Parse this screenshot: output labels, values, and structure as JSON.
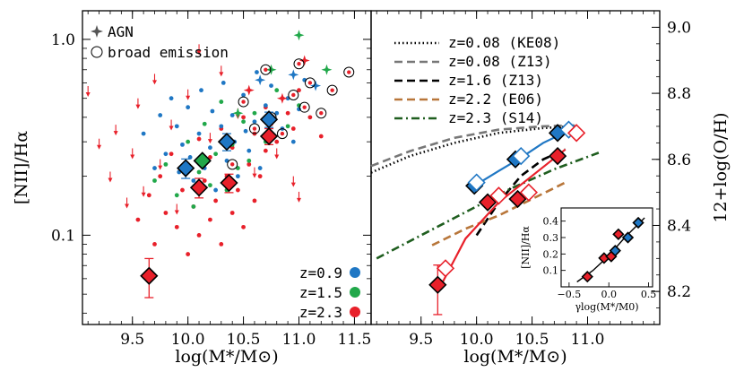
{
  "chart_data": [
    {
      "panel": "left",
      "type": "scatter",
      "xlabel": "log(M*/M⊙)",
      "ylabel": "[NII]/Hα",
      "xlim": [
        9.05,
        11.65
      ],
      "ylim": [
        0.035,
        1.4
      ],
      "yscale": "log",
      "xticks": [
        9.5,
        10.0,
        10.5,
        11.0,
        11.5
      ],
      "xtick_labels": [
        "9.5",
        "10.0",
        "10.5",
        "11.0",
        "11.5"
      ],
      "yticks": [
        0.1,
        1.0
      ],
      "ytick_labels": [
        "0.1",
        "1.0"
      ],
      "legend_top": [
        {
          "label": "AGN",
          "marker": "star"
        },
        {
          "label": "broad emission",
          "marker": "open-circle"
        }
      ],
      "legend_bottom": [
        {
          "label": "z=0.9",
          "color": "#1f77c4"
        },
        {
          "label": "z=1.5",
          "color": "#21a84a"
        },
        {
          "label": "z=2.3",
          "color": "#e8202a"
        }
      ],
      "series": [
        {
          "name": "z=0.9",
          "color": "#1f77c4",
          "x": [
            9.6,
            9.7,
            9.75,
            9.8,
            9.85,
            9.9,
            9.92,
            9.95,
            10.0,
            10.02,
            10.05,
            10.1,
            10.12,
            10.15,
            10.2,
            10.22,
            10.25,
            10.3,
            10.32,
            10.35,
            10.4,
            10.42,
            10.45,
            10.5,
            10.52,
            10.55,
            10.6,
            10.62,
            10.65,
            10.7,
            10.72,
            10.75,
            10.8,
            10.85,
            10.9,
            10.95,
            11.0,
            11.05
          ],
          "y": [
            0.33,
            0.22,
            0.41,
            0.26,
            0.5,
            0.36,
            0.21,
            0.29,
            0.45,
            0.25,
            0.19,
            0.33,
            0.55,
            0.22,
            0.28,
            0.43,
            0.17,
            0.36,
            0.6,
            0.24,
            0.41,
            0.3,
            0.2,
            0.52,
            0.34,
            0.27,
            0.38,
            0.68,
            0.22,
            0.46,
            0.31,
            0.58,
            0.42,
            0.35,
            0.5,
            0.3,
            0.44,
            0.62
          ]
        },
        {
          "name": "z=1.5",
          "color": "#21a84a",
          "x": [
            9.7,
            9.8,
            9.9,
            10.0,
            10.05,
            10.1,
            10.15,
            10.2,
            10.25,
            10.3,
            10.35,
            10.4,
            10.45,
            10.5,
            10.55,
            10.6,
            10.7,
            10.8,
            10.9,
            11.0
          ],
          "y": [
            0.19,
            0.23,
            0.16,
            0.3,
            0.14,
            0.21,
            0.37,
            0.18,
            0.26,
            0.48,
            0.17,
            0.29,
            0.22,
            0.38,
            0.24,
            0.42,
            0.3,
            0.55,
            0.36,
            0.46
          ]
        },
        {
          "name": "z=2.3",
          "color": "#e8202a",
          "x": [
            9.55,
            9.65,
            9.7,
            9.75,
            9.8,
            9.85,
            9.9,
            9.95,
            10.0,
            10.0,
            10.05,
            10.1,
            10.1,
            10.15,
            10.2,
            10.2,
            10.25,
            10.3,
            10.3,
            10.35,
            10.4,
            10.4,
            10.45,
            10.5,
            10.5,
            10.55,
            10.6,
            10.6,
            10.65,
            10.7,
            10.7,
            10.75,
            10.8,
            10.85,
            10.9,
            10.95,
            11.0,
            11.1,
            11.2
          ],
          "y": [
            0.12,
            0.16,
            0.09,
            0.2,
            0.13,
            0.26,
            0.11,
            0.17,
            0.08,
            0.22,
            0.14,
            0.1,
            0.31,
            0.19,
            0.12,
            0.25,
            0.15,
            0.09,
            0.35,
            0.2,
            0.13,
            0.28,
            0.17,
            0.11,
            0.4,
            0.23,
            0.15,
            0.33,
            0.2,
            0.27,
            0.45,
            0.37,
            0.3,
            0.5,
            0.42,
            0.35,
            0.55,
            0.4,
            0.32
          ]
        },
        {
          "name": "upper-limits",
          "x": [
            9.1,
            9.2,
            9.3,
            9.35,
            9.45,
            9.5,
            9.55,
            9.6,
            9.7,
            9.75,
            9.85,
            9.9,
            10.0,
            10.1,
            10.2,
            10.3,
            10.45,
            10.6,
            10.8,
            10.95,
            11.0
          ],
          "y": [
            0.52,
            0.28,
            0.19,
            0.33,
            0.14,
            0.25,
            0.45,
            0.16,
            0.6,
            0.22,
            0.35,
            0.13,
            0.5,
            0.85,
            0.3,
            0.66,
            0.4,
            0.2,
            0.25,
            0.18,
            0.15
          ]
        },
        {
          "name": "AGN",
          "x": [
            10.45,
            10.55,
            10.65,
            10.75,
            10.85,
            10.95,
            11.0,
            11.05,
            11.15,
            11.25
          ],
          "y": [
            0.42,
            0.55,
            0.62,
            0.7,
            0.5,
            0.66,
            1.05,
            0.78,
            0.58,
            0.7
          ]
        },
        {
          "name": "broad emission",
          "x": [
            10.4,
            10.5,
            10.6,
            10.7,
            10.75,
            10.85,
            10.95,
            11.0,
            11.05,
            11.1,
            11.2,
            11.3,
            11.45
          ],
          "y": [
            0.23,
            0.48,
            0.35,
            0.7,
            0.4,
            0.33,
            0.52,
            0.75,
            0.45,
            0.6,
            0.42,
            0.55,
            0.68
          ]
        },
        {
          "name": "stack z=0.9",
          "color": "#1f77c4",
          "x": [
            9.98,
            10.35,
            10.73
          ],
          "y": [
            0.22,
            0.3,
            0.39
          ],
          "yerr": [
            0.025,
            0.03,
            0.035
          ]
        },
        {
          "name": "stack z=1.5",
          "color": "#21a84a",
          "x": [
            10.13
          ],
          "y": [
            0.24
          ]
        },
        {
          "name": "stack z=2.3",
          "color": "#e8202a",
          "x": [
            9.65,
            10.1,
            10.37,
            10.73
          ],
          "y": [
            0.062,
            0.175,
            0.185,
            0.32
          ],
          "yerr": [
            0.014,
            0.02,
            0.02,
            0.03
          ]
        }
      ]
    },
    {
      "panel": "right",
      "type": "line",
      "xlabel": "log(M*/M⊙)",
      "ylabel": "12+log(O/H)",
      "xlim": [
        9.05,
        11.65
      ],
      "ylim": [
        8.1,
        9.05
      ],
      "xticks": [
        9.5,
        10.0,
        10.5,
        11.0
      ],
      "xtick_labels": [
        "9.5",
        "10.0",
        "10.5",
        "11.0"
      ],
      "yticks": [
        8.2,
        8.4,
        8.6,
        8.8,
        9.0
      ],
      "ytick_labels": [
        "8.2",
        "8.4",
        "8.6",
        "8.8",
        "9.0"
      ],
      "legend": [
        {
          "label": "z=0.08 (KE08)",
          "color": "#000000",
          "dash": "dotted"
        },
        {
          "label": "z=0.08 (Z13)",
          "color": "#777777",
          "dash": "dashed"
        },
        {
          "label": "z=1.6 (Z13)",
          "color": "#000000",
          "dash": "dashed"
        },
        {
          "label": "z=2.2 (E06)",
          "color": "#b8763a",
          "dash": "dashed"
        },
        {
          "label": "z=2.3 (S14)",
          "color": "#1f5e1f",
          "dash": "dashdot"
        }
      ],
      "lines": [
        {
          "name": "z=0.08 (KE08)",
          "x": [
            9.05,
            9.4,
            9.8,
            10.2,
            10.6,
            10.9
          ],
          "y": [
            8.56,
            8.61,
            8.65,
            8.68,
            8.695,
            8.7
          ]
        },
        {
          "name": "z=0.08 (Z13)",
          "x": [
            9.05,
            9.4,
            9.8,
            10.2,
            10.6,
            10.9
          ],
          "y": [
            8.58,
            8.625,
            8.665,
            8.69,
            8.7,
            8.703
          ]
        },
        {
          "name": "z=1.6 (Z13)",
          "x": [
            10.0,
            10.2,
            10.4,
            10.6,
            10.8
          ],
          "y": [
            8.37,
            8.47,
            8.55,
            8.6,
            8.63
          ]
        },
        {
          "name": "z=2.2 (E06)",
          "x": [
            9.6,
            9.9,
            10.2,
            10.5,
            10.8
          ],
          "y": [
            8.34,
            8.39,
            8.43,
            8.48,
            8.53
          ]
        },
        {
          "name": "z=2.3 (S14)",
          "x": [
            9.1,
            9.5,
            9.9,
            10.3,
            10.7,
            11.1
          ],
          "y": [
            8.3,
            8.37,
            8.44,
            8.51,
            8.57,
            8.62
          ]
        }
      ],
      "points": [
        {
          "name": "z=0.9 filled",
          "color": "#1f77c4",
          "x": [
            9.98,
            10.35,
            10.73
          ],
          "y": [
            8.52,
            8.6,
            8.68
          ]
        },
        {
          "name": "z=0.9 open",
          "color": "#1f77c4",
          "x": [
            10.0,
            10.4,
            10.83
          ],
          "y": [
            8.53,
            8.61,
            8.69
          ]
        },
        {
          "name": "z=2.3 filled",
          "color": "#e8202a",
          "x": [
            9.65,
            10.1,
            10.37,
            10.73
          ],
          "y": [
            8.22,
            8.47,
            8.48,
            8.61
          ]
        },
        {
          "name": "z=2.3 open",
          "color": "#e8202a",
          "x": [
            9.72,
            10.2,
            10.47,
            10.9
          ],
          "y": [
            8.27,
            8.49,
            8.5,
            8.68
          ]
        }
      ],
      "fits": [
        {
          "color": "#1f77c4",
          "x": [
            9.98,
            10.2,
            10.4,
            10.6,
            10.85
          ],
          "y": [
            8.52,
            8.565,
            8.605,
            8.65,
            8.69
          ]
        },
        {
          "color": "#e8202a",
          "x": [
            9.65,
            9.9,
            10.2,
            10.5,
            10.8
          ],
          "y": [
            8.2,
            8.36,
            8.47,
            8.55,
            8.63
          ]
        }
      ],
      "inset": {
        "xlabel": "γlog(M*/M0)",
        "ylabel": "[NII]/Hα",
        "xlim": [
          -0.6,
          0.55
        ],
        "ylim": [
          0.0,
          0.48
        ],
        "xticks": [
          -0.5,
          0.0,
          0.5
        ],
        "xtick_labels": [
          "−0.5",
          "0.0",
          "0.5"
        ],
        "yticks": [
          0.1,
          0.2,
          0.3,
          0.4
        ],
        "ytick_labels": [
          "0.1",
          "0.2",
          "0.3",
          "0.4"
        ],
        "red_points": {
          "x": [
            -0.27,
            -0.06,
            0.03,
            0.12
          ],
          "y": [
            0.062,
            0.175,
            0.185,
            0.32
          ]
        },
        "blue_points": {
          "x": [
            0.08,
            0.24,
            0.37
          ],
          "y": [
            0.22,
            0.3,
            0.39
          ]
        },
        "curve": {
          "x": [
            -0.4,
            -0.2,
            0.0,
            0.2,
            0.45
          ],
          "y": [
            0.03,
            0.1,
            0.19,
            0.3,
            0.42
          ]
        }
      }
    }
  ]
}
